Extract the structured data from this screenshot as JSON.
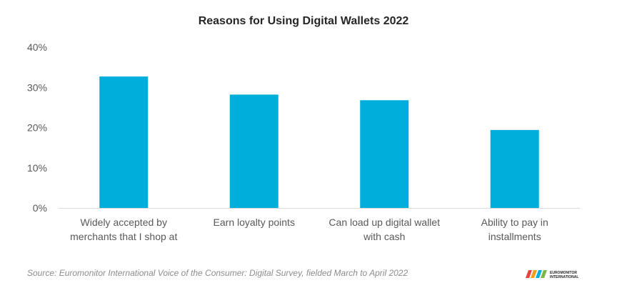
{
  "chart_data": {
    "type": "bar",
    "title": "Reasons for Using Digital Wallets 2022",
    "categories": [
      [
        "Widely accepted by",
        "merchants that I shop at"
      ],
      [
        "Earn loyalty points"
      ],
      [
        "Can load up digital wallet",
        "with cash"
      ],
      [
        "Ability to pay in",
        "installments"
      ]
    ],
    "values": [
      32.7,
      28.2,
      26.8,
      19.4
    ],
    "ylim": [
      0,
      40
    ],
    "yticks": [
      0,
      10,
      20,
      30,
      40
    ],
    "ytick_suffix": "%",
    "xlabel": "",
    "ylabel": "",
    "grid": false,
    "legend": "none",
    "bar_color": "#00AEDB"
  },
  "source": "Source: Euromonitor International Voice of the Consumer: Digital Survey, fielded March to April 2022",
  "logo": {
    "line1": "EUROMONITOR",
    "line2": "INTERNATIONAL",
    "colors": [
      "#E8423C",
      "#F59C1A",
      "#00AEDB",
      "#7AB648"
    ]
  }
}
